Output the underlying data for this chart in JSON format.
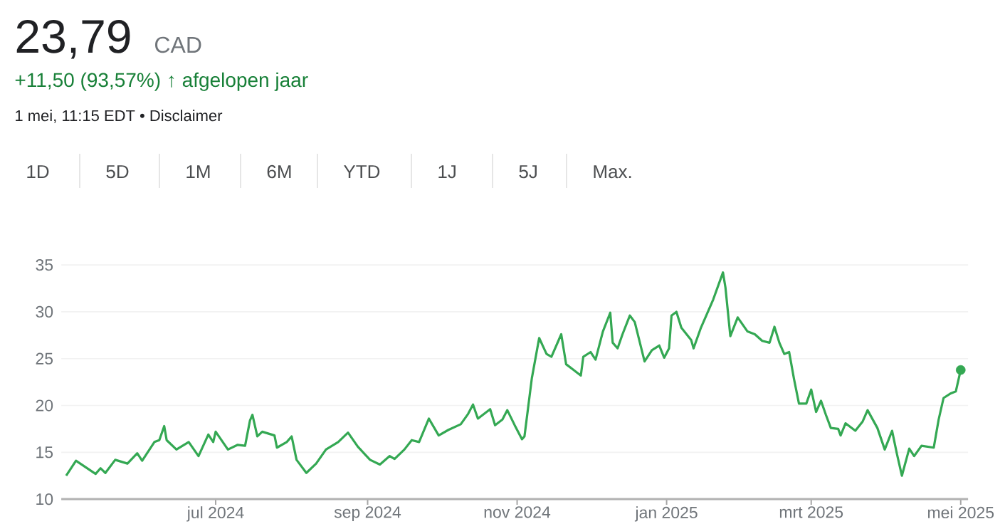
{
  "chart_data": {
    "type": "line",
    "title": "23,79",
    "subtitle": "CAD",
    "annotations": [
      "+11,50 (93,57%) ↑ afgelopen jaar",
      "1 mei, 11:15 EDT • Disclaimer",
      "1D",
      "5D",
      "1M",
      "6M",
      "YTD",
      "1J",
      "5J",
      "Max."
    ],
    "xlim": [
      "2024-04-29",
      "2025-05-04"
    ],
    "xticks": [
      {
        "value": "2024-07-01",
        "label": "jul 2024"
      },
      {
        "value": "2024-09-01",
        "label": "sep 2024"
      },
      {
        "value": "2024-11-01",
        "label": "nov 2024"
      },
      {
        "value": "2025-01-01",
        "label": "jan 2025"
      },
      {
        "value": "2025-03-01",
        "label": "mrt 2025"
      },
      {
        "value": "2025-05-01",
        "label": "mei 2025"
      }
    ],
    "ylim": [
      10,
      35
    ],
    "yticks": [
      10,
      15,
      20,
      25,
      30,
      35
    ],
    "grid": "y",
    "series": [
      {
        "type": "line",
        "color": "#34a853",
        "line_style": "solid",
        "x": [
          "2024-05-01",
          "2024-05-05",
          "2024-05-09",
          "2024-05-13",
          "2024-05-15",
          "2024-05-17",
          "2024-05-21",
          "2024-05-26",
          "2024-05-30",
          "2024-06-01",
          "2024-06-06",
          "2024-06-08",
          "2024-06-10",
          "2024-06-11",
          "2024-06-15",
          "2024-06-20",
          "2024-06-24",
          "2024-06-28",
          "2024-06-30",
          "2024-07-01",
          "2024-07-06",
          "2024-07-10",
          "2024-07-13",
          "2024-07-15",
          "2024-07-16",
          "2024-07-18",
          "2024-07-20",
          "2024-07-25",
          "2024-07-26",
          "2024-07-30",
          "2024-08-01",
          "2024-08-03",
          "2024-08-07",
          "2024-08-11",
          "2024-08-15",
          "2024-08-20",
          "2024-08-24",
          "2024-08-28",
          "2024-09-02",
          "2024-09-06",
          "2024-09-10",
          "2024-09-12",
          "2024-09-16",
          "2024-09-19",
          "2024-09-22",
          "2024-09-26",
          "2024-09-30",
          "2024-10-04",
          "2024-10-09",
          "2024-10-12",
          "2024-10-14",
          "2024-10-16",
          "2024-10-21",
          "2024-10-23",
          "2024-10-26",
          "2024-10-28",
          "2024-10-31",
          "2024-11-03",
          "2024-11-04",
          "2024-11-07",
          "2024-11-10",
          "2024-11-13",
          "2024-11-15",
          "2024-11-19",
          "2024-11-21",
          "2024-11-24",
          "2024-11-27",
          "2024-11-28",
          "2024-12-01",
          "2024-12-03",
          "2024-12-06",
          "2024-12-09",
          "2024-12-10",
          "2024-12-12",
          "2024-12-14",
          "2024-12-17",
          "2024-12-19",
          "2024-12-23",
          "2024-12-26",
          "2024-12-29",
          "2024-12-31",
          "2025-01-02",
          "2025-01-03",
          "2025-01-05",
          "2025-01-07",
          "2025-01-11",
          "2025-01-12",
          "2025-01-15",
          "2025-01-20",
          "2025-01-24",
          "2025-01-25",
          "2025-01-27",
          "2025-01-30",
          "2025-02-03",
          "2025-02-06",
          "2025-02-09",
          "2025-02-12",
          "2025-02-14",
          "2025-02-16",
          "2025-02-18",
          "2025-02-20",
          "2025-02-22",
          "2025-02-24",
          "2025-02-27",
          "2025-03-01",
          "2025-03-03",
          "2025-03-05",
          "2025-03-07",
          "2025-03-09",
          "2025-03-12",
          "2025-03-13",
          "2025-03-15",
          "2025-03-19",
          "2025-03-22",
          "2025-03-24",
          "2025-03-28",
          "2025-03-31",
          "2025-04-03",
          "2025-04-05",
          "2025-04-07",
          "2025-04-10",
          "2025-04-12",
          "2025-04-15",
          "2025-04-20",
          "2025-04-22",
          "2025-04-24",
          "2025-04-27",
          "2025-04-29",
          "2025-05-01"
        ],
        "values": [
          12.5,
          14.1,
          13.4,
          12.7,
          13.3,
          12.8,
          14.2,
          13.8,
          14.9,
          14.1,
          16.1,
          16.3,
          17.8,
          16.3,
          15.3,
          16.1,
          14.6,
          16.9,
          16.1,
          17.2,
          15.3,
          15.8,
          15.7,
          18.4,
          19.0,
          16.7,
          17.2,
          16.8,
          15.5,
          16.1,
          16.7,
          14.2,
          12.8,
          13.8,
          15.3,
          16.1,
          17.1,
          15.6,
          14.2,
          13.7,
          14.6,
          14.3,
          15.3,
          16.3,
          16.1,
          18.6,
          16.8,
          17.4,
          18.0,
          19.1,
          20.1,
          18.6,
          19.6,
          17.9,
          18.5,
          19.5,
          17.9,
          16.4,
          16.7,
          22.9,
          27.2,
          25.5,
          25.2,
          27.6,
          24.4,
          23.8,
          23.2,
          25.2,
          25.7,
          24.9,
          27.9,
          29.9,
          26.7,
          26.1,
          27.6,
          29.6,
          28.9,
          24.7,
          25.9,
          26.4,
          25.1,
          26.1,
          29.6,
          30.0,
          28.3,
          27.0,
          26.1,
          28.3,
          31.3,
          34.2,
          32.6,
          27.4,
          29.4,
          27.9,
          27.6,
          26.9,
          26.7,
          28.4,
          26.7,
          25.5,
          25.7,
          22.8,
          20.2,
          20.2,
          21.7,
          19.3,
          20.5,
          19.0,
          17.6,
          17.5,
          16.8,
          18.1,
          17.3,
          18.3,
          19.5,
          17.6,
          15.3,
          17.3,
          14.8,
          12.5,
          15.4,
          14.6,
          15.7,
          15.5,
          18.5,
          20.8,
          21.3,
          21.5,
          23.79
        ]
      },
      {
        "type": "scatter",
        "color": "#34a853",
        "marker": "circle",
        "x": [
          "2025-05-01"
        ],
        "values": [
          23.79
        ]
      }
    ]
  }
}
